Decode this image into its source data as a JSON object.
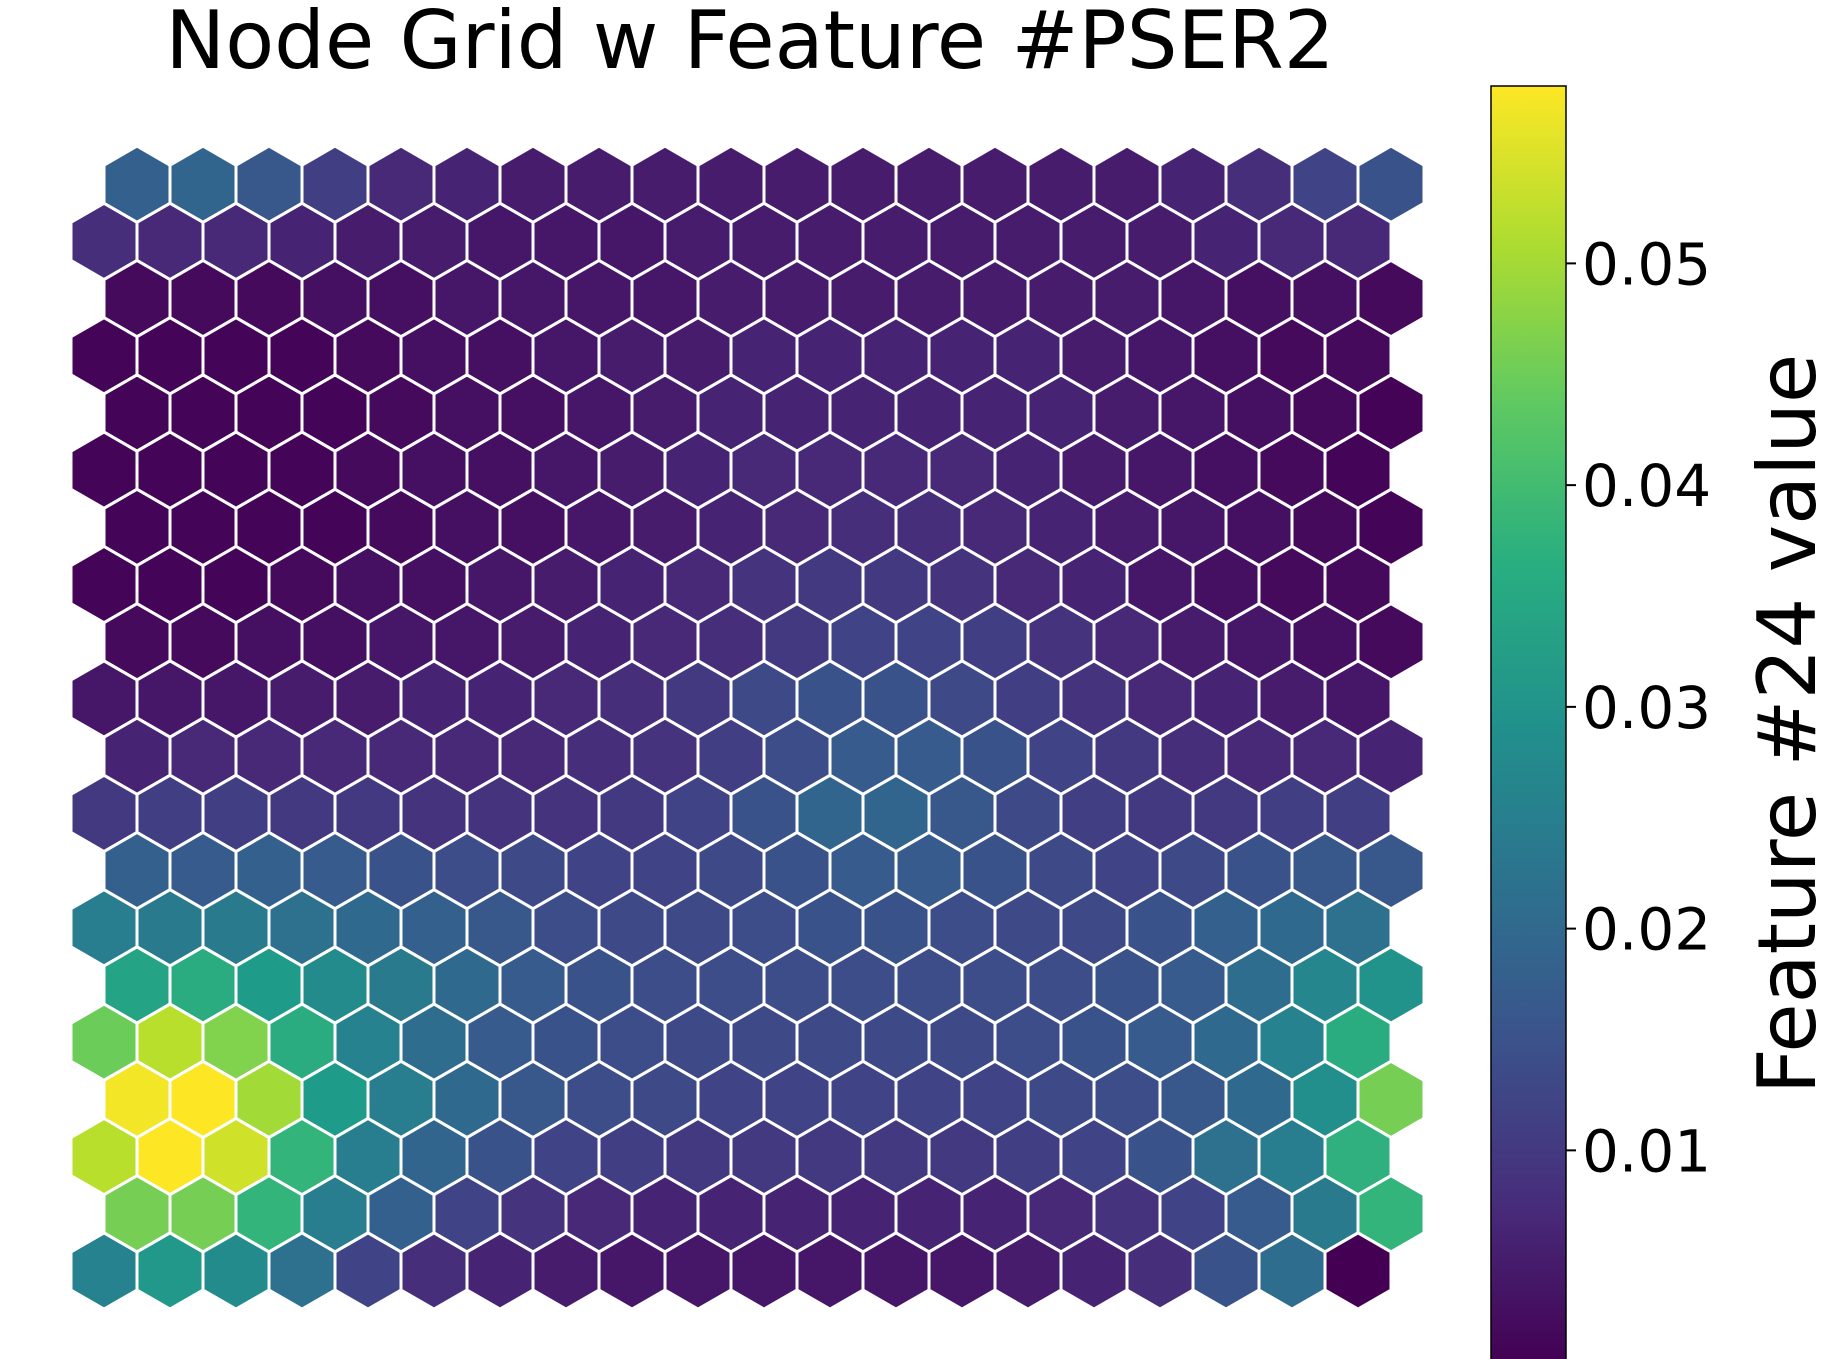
{
  "chart_data": {
    "type": "heatmap",
    "subtype": "hexagonal-grid",
    "title": "Node Grid w Feature #PSER2",
    "colorbar": {
      "label": "Feature #24 value",
      "ticks": [
        0.01,
        0.02,
        0.03,
        0.04,
        0.05
      ],
      "tick_labels": [
        "0.01",
        "0.02",
        "0.03",
        "0.04",
        "0.05"
      ],
      "range": [
        0.0005,
        0.058
      ],
      "colormap": "viridis"
    },
    "grid": {
      "rows": 20,
      "cols": 20,
      "row_order": "top-to-bottom",
      "odd_row_offset": "even rows shifted right"
    },
    "values": [
      [
        0.018,
        0.019,
        0.016,
        0.011,
        0.007,
        0.006,
        0.005,
        0.005,
        0.005,
        0.005,
        0.005,
        0.005,
        0.005,
        0.005,
        0.005,
        0.005,
        0.006,
        0.008,
        0.012,
        0.015
      ],
      [
        0.008,
        0.007,
        0.007,
        0.006,
        0.005,
        0.005,
        0.004,
        0.004,
        0.004,
        0.005,
        0.005,
        0.005,
        0.005,
        0.005,
        0.005,
        0.005,
        0.005,
        0.006,
        0.007,
        0.007
      ],
      [
        0.002,
        0.002,
        0.002,
        0.003,
        0.003,
        0.004,
        0.004,
        0.004,
        0.004,
        0.005,
        0.005,
        0.005,
        0.005,
        0.005,
        0.005,
        0.005,
        0.004,
        0.003,
        0.003,
        0.002
      ],
      [
        0.001,
        0.001,
        0.001,
        0.001,
        0.002,
        0.003,
        0.003,
        0.004,
        0.005,
        0.005,
        0.006,
        0.006,
        0.006,
        0.006,
        0.006,
        0.005,
        0.004,
        0.003,
        0.002,
        0.002
      ],
      [
        0.001,
        0.001,
        0.001,
        0.001,
        0.002,
        0.003,
        0.003,
        0.004,
        0.005,
        0.006,
        0.006,
        0.006,
        0.006,
        0.006,
        0.006,
        0.005,
        0.004,
        0.003,
        0.002,
        0.0008
      ],
      [
        0.001,
        0.001,
        0.001,
        0.001,
        0.002,
        0.003,
        0.003,
        0.004,
        0.005,
        0.006,
        0.007,
        0.007,
        0.007,
        0.007,
        0.006,
        0.005,
        0.004,
        0.003,
        0.002,
        0.001
      ],
      [
        0.001,
        0.001,
        0.001,
        0.001,
        0.002,
        0.003,
        0.003,
        0.004,
        0.005,
        0.006,
        0.007,
        0.008,
        0.008,
        0.007,
        0.006,
        0.005,
        0.004,
        0.003,
        0.002,
        0.001
      ],
      [
        0.001,
        0.001,
        0.001,
        0.002,
        0.003,
        0.003,
        0.004,
        0.005,
        0.006,
        0.007,
        0.009,
        0.01,
        0.01,
        0.009,
        0.007,
        0.006,
        0.004,
        0.003,
        0.002,
        0.002
      ],
      [
        0.002,
        0.002,
        0.003,
        0.003,
        0.004,
        0.004,
        0.005,
        0.006,
        0.007,
        0.008,
        0.01,
        0.012,
        0.012,
        0.011,
        0.009,
        0.007,
        0.005,
        0.004,
        0.003,
        0.002
      ],
      [
        0.004,
        0.004,
        0.004,
        0.005,
        0.005,
        0.006,
        0.006,
        0.007,
        0.008,
        0.01,
        0.013,
        0.015,
        0.015,
        0.013,
        0.011,
        0.009,
        0.007,
        0.006,
        0.005,
        0.004
      ],
      [
        0.006,
        0.007,
        0.007,
        0.007,
        0.007,
        0.007,
        0.007,
        0.008,
        0.009,
        0.011,
        0.014,
        0.017,
        0.017,
        0.015,
        0.012,
        0.01,
        0.008,
        0.007,
        0.007,
        0.006
      ],
      [
        0.01,
        0.011,
        0.011,
        0.01,
        0.01,
        0.009,
        0.009,
        0.009,
        0.01,
        0.012,
        0.015,
        0.019,
        0.019,
        0.016,
        0.013,
        0.011,
        0.01,
        0.01,
        0.011,
        0.011
      ],
      [
        0.018,
        0.017,
        0.018,
        0.017,
        0.015,
        0.014,
        0.013,
        0.012,
        0.012,
        0.013,
        0.015,
        0.017,
        0.017,
        0.015,
        0.013,
        0.012,
        0.013,
        0.015,
        0.016,
        0.016
      ],
      [
        0.025,
        0.024,
        0.024,
        0.022,
        0.02,
        0.018,
        0.016,
        0.014,
        0.013,
        0.013,
        0.014,
        0.015,
        0.015,
        0.014,
        0.013,
        0.013,
        0.015,
        0.018,
        0.02,
        0.022
      ],
      [
        0.034,
        0.036,
        0.032,
        0.028,
        0.024,
        0.02,
        0.017,
        0.015,
        0.014,
        0.014,
        0.014,
        0.014,
        0.014,
        0.014,
        0.014,
        0.015,
        0.017,
        0.021,
        0.027,
        0.03
      ],
      [
        0.045,
        0.052,
        0.047,
        0.036,
        0.026,
        0.021,
        0.017,
        0.015,
        0.014,
        0.013,
        0.013,
        0.013,
        0.013,
        0.013,
        0.014,
        0.015,
        0.017,
        0.02,
        0.026,
        0.036
      ],
      [
        0.057,
        0.058,
        0.05,
        0.032,
        0.025,
        0.02,
        0.016,
        0.014,
        0.013,
        0.012,
        0.012,
        0.012,
        0.012,
        0.012,
        0.013,
        0.014,
        0.016,
        0.02,
        0.029,
        0.046
      ],
      [
        0.052,
        0.058,
        0.054,
        0.038,
        0.025,
        0.019,
        0.015,
        0.012,
        0.011,
        0.01,
        0.01,
        0.01,
        0.01,
        0.01,
        0.011,
        0.012,
        0.015,
        0.022,
        0.025,
        0.037
      ],
      [
        0.046,
        0.046,
        0.038,
        0.025,
        0.018,
        0.012,
        0.009,
        0.007,
        0.006,
        0.006,
        0.006,
        0.006,
        0.006,
        0.006,
        0.007,
        0.009,
        0.012,
        0.017,
        0.024,
        0.038
      ],
      [
        0.026,
        0.031,
        0.028,
        0.022,
        0.012,
        0.008,
        0.006,
        0.005,
        0.004,
        0.004,
        0.004,
        0.004,
        0.004,
        0.004,
        0.005,
        0.006,
        0.008,
        0.015,
        0.021,
        0.0
      ]
    ]
  }
}
